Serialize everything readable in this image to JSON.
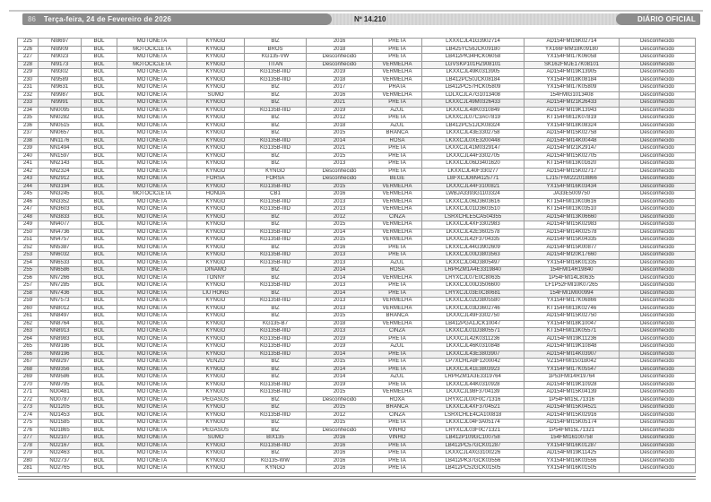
{
  "header": {
    "page_number": "86",
    "date": "Terça-feira, 24 de Fevereiro de 2026",
    "edition": "Nº 14.210",
    "masthead": "DIÁRIO OFICIAL"
  },
  "colors": {
    "bar_dark": "#8c8c8c",
    "bar_light": "#d9d9d9",
    "table_border": "#9a9a9a",
    "text": "#333333"
  },
  "table": {
    "rows": [
      [
        "225",
        "NI8697",
        "BOL",
        "MOTONETA",
        "KYNGO",
        "BIZ",
        "2016",
        "PRETA",
        "LXXXCJL41G3902714",
        "AD154FMI16K02714",
        "Desconhecido"
      ],
      [
        "226",
        "NI8909",
        "BOL",
        "MOTOCICLETA",
        "KYNGO",
        "BROS",
        "2018",
        "PRETA",
        "LB425YC56JCK09180",
        "YX166FMM18K09180",
        "Desconhecido"
      ],
      [
        "227",
        "NI9023",
        "BOL",
        "MOTONETA",
        "KYNGO",
        "KG135-VW",
        "Desconhecido",
        "PRETA",
        "LB412PK34HCK06058",
        "YX154FMI17K06058",
        "Desconhecido"
      ],
      [
        "228",
        "NI9173",
        "BOL",
        "MOTOCICLETA",
        "KYNGO",
        "TITAN",
        "Desconhecido",
        "VERMELHA",
        "LGVSKP101HZ908101",
        "SK162FMJE17K08101",
        "Desconhecido"
      ],
      [
        "229",
        "NI9302",
        "BOL",
        "MOTONETA",
        "KYNGO",
        "KG135B-IIID",
        "2019",
        "VERMELHA",
        "LKXXCJL49K0313905",
        "AD154FMI19K13905",
        "Desconhecido"
      ],
      [
        "230",
        "NI9589",
        "BOL",
        "MOTONETA",
        "KYNGO",
        "KG135B-IIID",
        "2018",
        "VERMELHA",
        "LB412PC50JCK08184",
        "YX154FMI18K08184",
        "Desconhecido"
      ],
      [
        "231",
        "NI9631",
        "BOL",
        "MOTONETA",
        "KYNGO",
        "BIZ",
        "2017",
        "PRATA",
        "LB412PC57HCK05809",
        "YX154FMI17K05809",
        "Desconhecido"
      ],
      [
        "232",
        "NI9987",
        "BOL",
        "MOTONETA",
        "SUMO",
        "BIZ",
        "2016",
        "VERMELHA",
        "LDLXCJLA7G1013408",
        "154FMIG1013408",
        "Desconhecido"
      ],
      [
        "233",
        "NI9991",
        "BOL",
        "MOTONETA",
        "KYNGO",
        "BIZ",
        "2021",
        "PRETA",
        "LKXXCJL49M0326433",
        "AD154FMI21K26433",
        "Desconhecido"
      ],
      [
        "234",
        "NN0095",
        "BOL",
        "MOTONETA",
        "KYNGO",
        "KG135B-IIID",
        "2019",
        "AZUL",
        "LKXXCJL48K0310849",
        "AD154FMI19K13943",
        "Desconhecido"
      ],
      [
        "235",
        "NN0282",
        "BOL",
        "MOTONETA",
        "KYNGO",
        "BIZ",
        "2012",
        "PRETA",
        "LKXXCJL07C3A07819",
        "KT154FMI12K07819",
        "Desconhecido"
      ],
      [
        "236",
        "NN0515",
        "BOL",
        "MOTONETA",
        "KYNGO",
        "BIZ",
        "2018",
        "AZUL",
        "LB412PC51JCK08324",
        "YX154FMI18K08324",
        "Desconhecido"
      ],
      [
        "237",
        "NN0657",
        "BOL",
        "MOTONETA",
        "KYNGO",
        "BIZ",
        "2015",
        "BRANCA",
        "LKXXCJL43E3302758",
        "AD154FMI15K02758",
        "Desconhecido"
      ],
      [
        "238",
        "NN1176",
        "BOL",
        "MOTONETA",
        "KYNGO",
        "KG135B-IIID",
        "2014",
        "ROSA",
        "LKXXCJL0XE3200448",
        "AD154FMI14K00448",
        "Desconhecido"
      ],
      [
        "239",
        "NN1494",
        "BOL",
        "MOTONETA",
        "KYNGO",
        "KG135B-IIID",
        "2021",
        "PRETA",
        "LKXXCJL41M0329147",
        "AD154FMI21K29147",
        "Desconhecido"
      ],
      [
        "240",
        "NN1597",
        "BOL",
        "MOTONETA",
        "KYNGO",
        "BIZ",
        "2015",
        "PRETA",
        "LKXXCJL44F3302705",
        "AD154FMI15K02705",
        "Desconhecido"
      ],
      [
        "241",
        "NN2143",
        "BOL",
        "MOTONETA",
        "KYNGO",
        "BIZ",
        "2013",
        "PRETA",
        "LKXXCJL06D3401620",
        "KT154FMI13K01620",
        "Desconhecido"
      ],
      [
        "242",
        "NN2324",
        "BOL",
        "MOTONETA",
        "KYNGO",
        "KYNGO",
        "Desconhecido",
        "PRETA",
        "LKXXCJL40F330277",
        "AD154FMI15K02717",
        "Desconhecido"
      ],
      [
        "243",
        "NN2912",
        "BOL",
        "MOTONETA",
        "FORSA",
        "FORSA",
        "Desconhecido",
        "BEGE",
        "LBFXCJD6N4125771",
        "LJ157FMI222018866",
        "Desconhecido"
      ],
      [
        "244",
        "NN3194",
        "BOL",
        "MOTONETA",
        "KYNGO",
        "KG135B-IIID",
        "2015",
        "VERMELHA",
        "LKXXCJL44F3100821",
        "YX154FMI16K03434",
        "Desconhecido"
      ],
      [
        "245",
        "NN3245",
        "BOL",
        "MOTOCICLETA",
        "HONDA",
        "CB1",
        "2016",
        "VERMELHA",
        "LWBJA3393G1103324",
        "JA33E5009750",
        "Desconhecido"
      ],
      [
        "246",
        "NN3352",
        "BOL",
        "MOTONETA",
        "KYNGO",
        "KG135B-IIID",
        "2013",
        "VERMELHA",
        "LKXXCJL06D3603616",
        "KT154FMI13K03616",
        "Desconhecido"
      ],
      [
        "247",
        "NN3603",
        "BOL",
        "MOTONETA",
        "KYNGO",
        "KG135B-IIID",
        "2013",
        "VERMELHA",
        "LKXXCJL01D3603510",
        "KT154FMI13K03510",
        "Desconhecido"
      ],
      [
        "248",
        "NN3833",
        "BOL",
        "MOTONETA",
        "KYNGO",
        "BIZ",
        "2012",
        "CINZA",
        "LSRXCHLE5CA504355",
        "AD154FMI13K06660",
        "Desconhecido"
      ],
      [
        "249",
        "NN4077",
        "BOL",
        "MOTONETA",
        "KYNGO",
        "BIZ",
        "2015",
        "VERMELHA",
        "LKXXCJL4XF3302983",
        "AD154FMI15K02983",
        "Desconhecido"
      ],
      [
        "250",
        "NN4736",
        "BOL",
        "MOTONETA",
        "KYNGO",
        "KG135B-IIID",
        "2014",
        "VERMELHA",
        "LKXXCJL42E3602578",
        "AD154FMI14K02578",
        "Desconhecido"
      ],
      [
        "251",
        "NN4757",
        "BOL",
        "MOTONETA",
        "KYNGO",
        "KG135B-IIID",
        "2015",
        "VERMELHA",
        "LKXXCJL42F3704335",
        "AD154FMI15K04335",
        "Desconhecido"
      ],
      [
        "252",
        "NN5387",
        "BOL",
        "MOTONETA",
        "KYNGO",
        "BIZ",
        "2016",
        "PRETA",
        "LKXXCJL44G3902609",
        "AD154FMI15K00877",
        "Desconhecido"
      ],
      [
        "253",
        "NN6032",
        "BOL",
        "MOTONETA",
        "KYNGO",
        "KG135B-IIID",
        "2013",
        "PRETA",
        "LKXXCJL00D3803563",
        "AD154FMI20K17660",
        "Desconhecido"
      ],
      [
        "254",
        "NN6533",
        "BOL",
        "MOTONETA",
        "KYNGO",
        "KG135B-IIID",
        "2013",
        "AZUL",
        "LKXXCJL04D3805497",
        "YX154FMI16K01335",
        "Desconhecido"
      ],
      [
        "255",
        "NN6586",
        "BOL",
        "MOTONETA",
        "DINAMO",
        "BIZ",
        "2014",
        "ROSA",
        "LRPRZM1A4E3319840",
        "154FMI14R19840",
        "Desconhecido"
      ],
      [
        "256",
        "NN7266",
        "BOL",
        "MOTONETA",
        "TONNY",
        "BIZ",
        "2014",
        "VERMELHA",
        "LRYXCJL07E0C80635",
        "1P54FMI14L80635",
        "Desconhecido"
      ],
      [
        "257",
        "NN7285",
        "BOL",
        "MOTONETA",
        "KYNGO",
        "KG135B-IIID",
        "2013",
        "PRETA",
        "LKXXCJL00D3506600",
        "LF1P52FMI10K07265",
        "Desconhecido"
      ],
      [
        "258",
        "NN7436",
        "BOL",
        "MOTONETA",
        "LIU HONG",
        "BIZ",
        "2014",
        "PRETA",
        "LRYXCJL03E0C80681",
        "154FMI1M000994",
        "Desconhecido"
      ],
      [
        "259",
        "NN7573",
        "BOL",
        "MOTONETA",
        "KYNGO",
        "KG135B-IIID",
        "2013",
        "VERMELHA",
        "LKXXCJL02D3805580",
        "YX154FMI17K06866",
        "Desconhecido"
      ],
      [
        "260",
        "NN8012",
        "BOL",
        "MOTONETA",
        "KYNGO",
        "BIZ",
        "2013",
        "VERMELHA",
        "LKXXCJL03D3602746",
        "KT154FMI13K02746",
        "Desconhecido"
      ],
      [
        "261",
        "NN8497",
        "BOL",
        "MOTONETA",
        "KYNGO",
        "BIZ",
        "2015",
        "BRANCA",
        "LKXXCJL49F3302750",
        "AD154FMI15K02750",
        "Desconhecido"
      ],
      [
        "262",
        "NN8764",
        "BOL",
        "MOTONETA",
        "KYNGO",
        "KG135-B7",
        "2018",
        "VERMELHA",
        "LB412PGA1JCK10047",
        "YX154FMI18K10047",
        "Desconhecido"
      ],
      [
        "263",
        "NN8913",
        "BOL",
        "MOTONETA",
        "KYNGO",
        "KG135B-IIID",
        "2013",
        "CINZA",
        "LKXXCJL01D3805571",
        "KT154FMI13K05571",
        "Desconhecido"
      ],
      [
        "264",
        "NN8983",
        "BOL",
        "MOTONETA",
        "KYNGO",
        "KG135B-IIID",
        "2019",
        "PRETA",
        "LKXXCJL42K0311236",
        "AD154FMI19K11236",
        "Desconhecido"
      ],
      [
        "265",
        "NN9186",
        "BOL",
        "MOTONETA",
        "KYNGO",
        "KG135B-IIID",
        "2019",
        "AZUL",
        "LKXXCJL46K0310848",
        "AD154FMI19K10848",
        "Desconhecido"
      ],
      [
        "266",
        "NN9196",
        "BOL",
        "MOTONETA",
        "KYNGO",
        "KG135B-IIID",
        "2014",
        "PRETA",
        "LKXXCJL43E3803907",
        "AD154FMI14K03907",
        "Desconhecido"
      ],
      [
        "267",
        "NN9297",
        "BOL",
        "MOTONETA",
        "VENZO",
        "BIZ",
        "2015",
        "PRETA",
        "LP7XCHLA8F1200042",
        "VZ154FMI1501B042",
        "Desconhecido"
      ],
      [
        "268",
        "NN9356",
        "BOL",
        "MOTONETA",
        "KYNGO",
        "BIZ",
        "2014",
        "PRETA",
        "LKXXCJL41E3803923",
        "YX154FMI17K05547",
        "Desconhecido"
      ],
      [
        "269",
        "NN9586",
        "BOL",
        "MOTONETA",
        "KYNGO",
        "BIZ",
        "2014",
        "AZUL",
        "LRPRZM1A3E3319764",
        "1P53FMI14R19764",
        "Desconhecido"
      ],
      [
        "270",
        "NN9795",
        "BOL",
        "MOTONETA",
        "KYNGO",
        "KG135B-IIID",
        "2019",
        "PRETA",
        "LKXXCJL44K0310928",
        "AD154FMI19K10928",
        "Desconhecido"
      ],
      [
        "271",
        "NO0481",
        "BOL",
        "MOTONETA",
        "KYNGO",
        "KG135B-IIID",
        "2015",
        "VERMELHA",
        "LKXXCJL98F3704139",
        "AD154FMI15K04139",
        "Desconhecido"
      ],
      [
        "272",
        "NO0787",
        "BOL",
        "MOTONETA",
        "PEGASUS",
        "BIZ",
        "Desconhecido",
        "ROXA",
        "LRYXCJL0XF0C71316",
        "1P54FMI15L71316",
        "Desconhecido"
      ],
      [
        "273",
        "NO1205",
        "BOL",
        "MOTONETA",
        "KYNGO",
        "BIZ",
        "2015",
        "BRANCA",
        "LKXXCJL4XF3704521",
        "AD154FMI15K04521",
        "Desconhecido"
      ],
      [
        "274",
        "NO1453",
        "BOL",
        "MOTONETA",
        "KYNGO",
        "KG135B-IIID",
        "2012",
        "CINZA",
        "LSRXCHLE4CA100818",
        "AD154FMI15K02916",
        "Desconhecido"
      ],
      [
        "275",
        "NO1585",
        "BOL",
        "MOTONETA",
        "KYNGO",
        "BIZ",
        "2015",
        "PRETA",
        "LKXXCJL04F3A05174",
        "AD154FMI15K05174",
        "Desconhecido"
      ],
      [
        "276",
        "NO1865",
        "BOL",
        "MOTONETA",
        "PEGASUS",
        "BIZ",
        "Desconhecido",
        "VINHO",
        "LRYXCJL03F0C71321",
        "1P54FMI15L71321",
        "Desconhecido"
      ],
      [
        "277",
        "NO2107",
        "BOL",
        "MOTONETA",
        "SUMO",
        "BIX135",
        "2016",
        "VINHO",
        "LB412P109GC100758",
        "154FMI16100758",
        "Desconhecido"
      ],
      [
        "278",
        "NO2167",
        "BOL",
        "MOTONETA",
        "KYNGO",
        "KG135B-IIID",
        "2016",
        "PRETA",
        "LB412PC57GCK01287",
        "YX154FMI16K01287",
        "Desconhecido"
      ],
      [
        "279",
        "NO2463",
        "BOL",
        "MOTONETA",
        "KYNGO",
        "BIZ",
        "2016",
        "PRETA",
        "LKXXCJL4XG3100226",
        "AD154FMI19K11425",
        "Desconhecido"
      ],
      [
        "280",
        "NO2737",
        "BOL",
        "MOTONETA",
        "KYNGO",
        "KG135-WW",
        "2016",
        "PRETA",
        "LB412PK37GCK03556",
        "YX154FMI16K03556",
        "Desconhecido"
      ],
      [
        "281",
        "NO2765",
        "BOL",
        "MOTONETA",
        "KYNGO",
        "KYNGO",
        "2016",
        "PRETA",
        "LB412PC52GCK01505",
        "YX154FMI16K01505",
        "Desconhecido"
      ]
    ]
  }
}
